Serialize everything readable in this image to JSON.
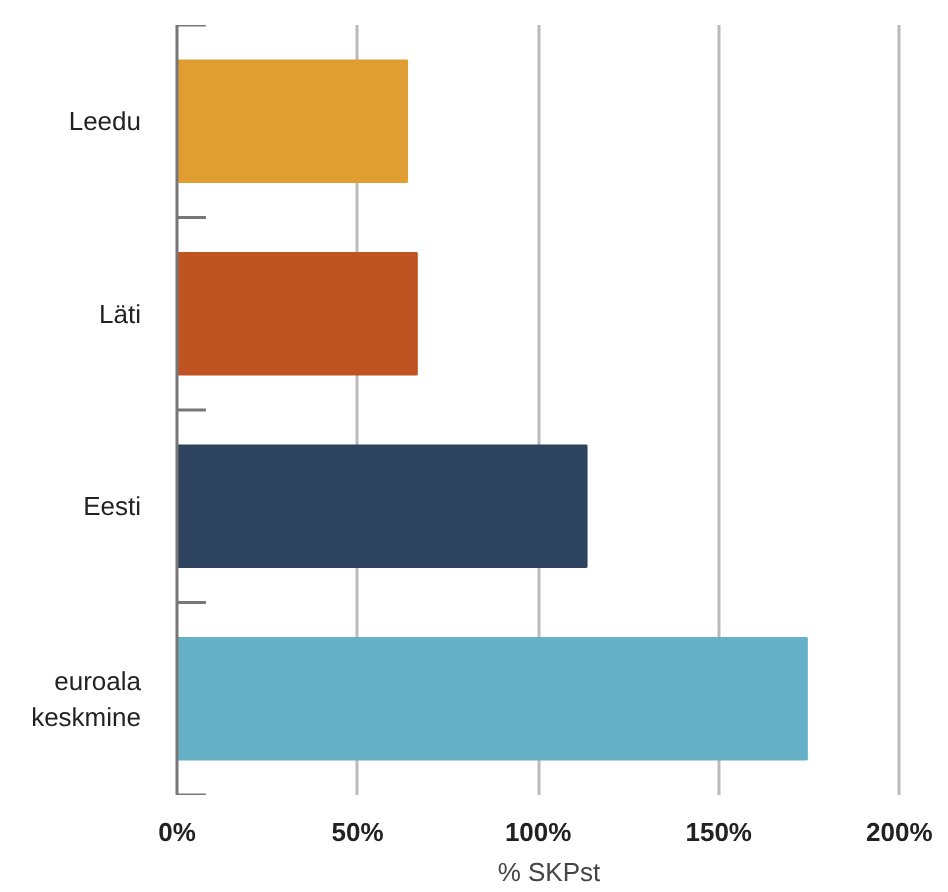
{
  "chart_data": {
    "type": "bar",
    "orientation": "horizontal",
    "xlabel": "% SKPst",
    "categories": [
      "Leedu",
      "Läti",
      "Eesti",
      "euroala\nkeskmine"
    ],
    "values": [
      63.7,
      66.4,
      113.4,
      174.4
    ],
    "colors": [
      "#e09e32",
      "#c05322",
      "#2e445e",
      "#66b1c8"
    ],
    "xlim": [
      0,
      200
    ],
    "xticks": [
      {
        "value": 0,
        "label": "0%"
      },
      {
        "value": 50,
        "label": "50%"
      },
      {
        "value": 100,
        "label": "100%"
      },
      {
        "value": 150,
        "label": "150%"
      },
      {
        "value": 200,
        "label": "200%"
      }
    ],
    "grid": "x"
  }
}
